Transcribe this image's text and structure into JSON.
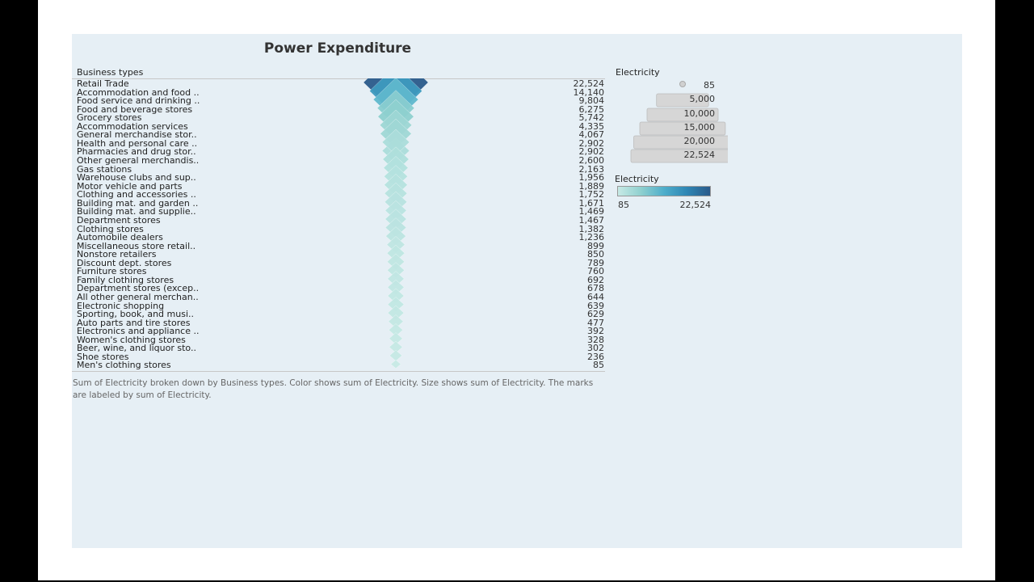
{
  "title": "Power Expenditure",
  "column_header": "Business types",
  "caption": "Sum of Electricity broken down by Business types.  Color shows sum of Electricity.  Size shows sum of Electricity.  The marks are labeled by sum of Electricity.",
  "size_legend": {
    "title": "Electricity",
    "entries": [
      "85",
      "5,000",
      "10,000",
      "15,000",
      "20,000",
      "22,524"
    ],
    "values": [
      85,
      5000,
      10000,
      15000,
      20000,
      22524
    ]
  },
  "color_legend": {
    "title": "Electricity",
    "min_label": "85",
    "max_label": "22,524",
    "colors": [
      "#c7e9e5",
      "#8fd0cf",
      "#4eaecb",
      "#2e86b4",
      "#2a5a8a"
    ]
  },
  "chart_data": {
    "type": "table",
    "mark": "diamond",
    "title": "Power Expenditure",
    "measure": "Electricity",
    "categories": [
      "Retail Trade",
      "Accommodation and food ..",
      "Food service and drinking ..",
      "Food and beverage stores",
      "Grocery stores",
      "Accommodation services",
      "General merchandise stor..",
      "Health and personal care ..",
      "Pharmacies and drug stor..",
      "Other general merchandis..",
      "Gas stations",
      "Warehouse clubs and sup..",
      "Motor vehicle and parts",
      "Clothing and accessories ..",
      "Building mat. and garden ..",
      "Building mat. and supplie..",
      "Department stores",
      "Clothing stores",
      "Automobile dealers",
      "Miscellaneous store retail..",
      "Nonstore retailers",
      "Discount dept. stores",
      "Furniture stores",
      "Family clothing stores",
      "Department stores (excep..",
      "All other general merchan..",
      "Electronic shopping",
      "Sporting, book, and  musi..",
      "Auto parts and tire stores",
      "Electronics and appliance ..",
      "Women's clothing stores",
      "Beer, wine, and liquor sto..",
      "Shoe stores",
      "Men's clothing stores"
    ],
    "values": [
      22524,
      14140,
      9804,
      6275,
      5742,
      4335,
      4067,
      2902,
      2902,
      2600,
      2163,
      1956,
      1889,
      1752,
      1671,
      1469,
      1467,
      1382,
      1236,
      899,
      850,
      789,
      760,
      692,
      678,
      644,
      639,
      629,
      477,
      392,
      328,
      302,
      236,
      85
    ],
    "value_labels": [
      "22,524",
      "14,140",
      "9,804",
      "6,275",
      "5,742",
      "4,335",
      "4,067",
      "2,902",
      "2,902",
      "2,600",
      "2,163",
      "1,956",
      "1,889",
      "1,752",
      "1,671",
      "1,469",
      "1,467",
      "1,382",
      "1,236",
      "899",
      "850",
      "789",
      "760",
      "692",
      "678",
      "644",
      "639",
      "629",
      "477",
      "392",
      "328",
      "302",
      "236",
      "85"
    ],
    "range": [
      85,
      22524
    ]
  }
}
